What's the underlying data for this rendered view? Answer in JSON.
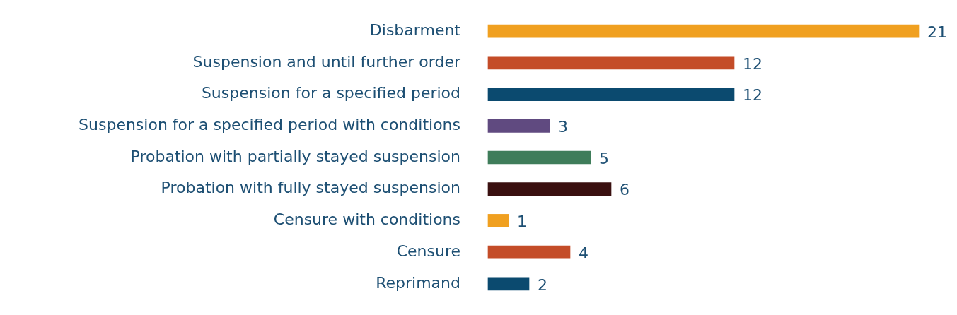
{
  "chart_data": {
    "type": "bar",
    "orientation": "horizontal",
    "categories": [
      "Disbarment",
      "Suspension and until further order",
      "Suspension for a specified period",
      "Suspension for a specified period with conditions",
      "Probation with partially stayed suspension",
      "Probation with fully stayed suspension",
      "Censure with conditions",
      "Censure",
      "Reprimand"
    ],
    "values": [
      21,
      12,
      12,
      3,
      5,
      6,
      1,
      4,
      2
    ],
    "colors": [
      "#f0a020",
      "#c44c28",
      "#0b4a6f",
      "#604a80",
      "#3f7d5a",
      "#3a1010",
      "#f0a020",
      "#c44c28",
      "#0b4a6f"
    ],
    "data_labels": true,
    "grid": false,
    "legend": false,
    "tick_labels": "y"
  }
}
